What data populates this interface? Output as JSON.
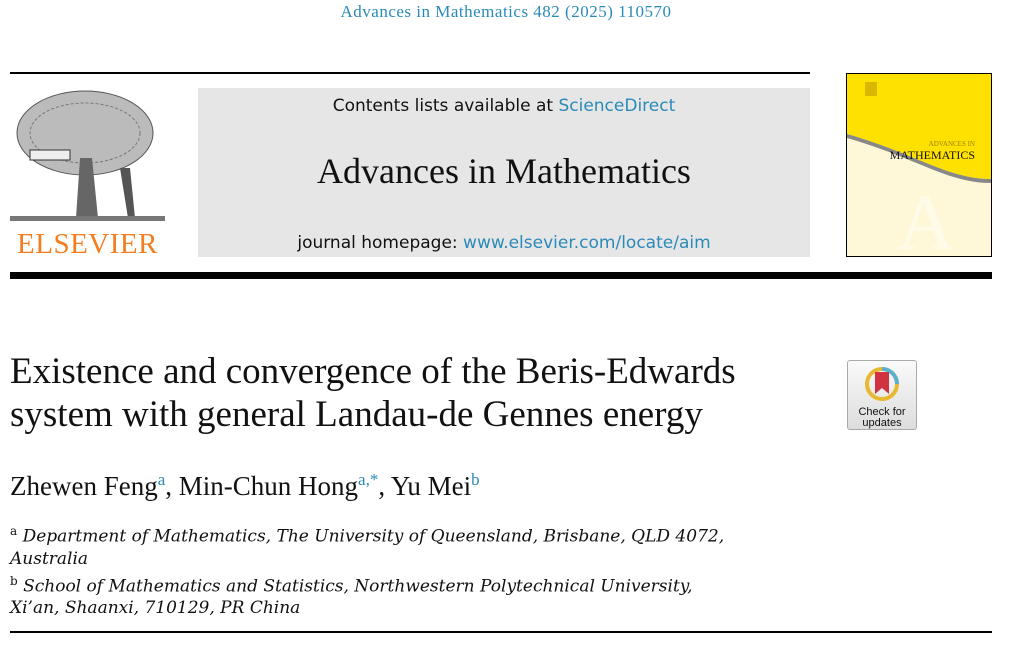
{
  "header": {
    "citation": "Advances in Mathematics 482 (2025) 110570",
    "contents_prefix": "Contents lists available at ",
    "contents_link": "ScienceDirect",
    "journal_title": "Advances in Mathematics",
    "homepage_prefix": "journal homepage: ",
    "homepage_link": "www.elsevier.com/locate/aim",
    "publisher": "ELSEVIER",
    "cover_line1": "ADVANCES IN",
    "cover_line2": "MATHEMATICS"
  },
  "badge": {
    "line1": "Check for",
    "line2": "updates"
  },
  "article": {
    "title_line1": "Existence and convergence of the Beris-Edwards",
    "title_line2": "system with general Landau-de Gennes energy",
    "authors": [
      {
        "name": "Zhewen Feng",
        "aff": "a"
      },
      {
        "name": "Min-Chun Hong",
        "aff": "a,*"
      },
      {
        "name": "Yu Mei",
        "aff": "b"
      }
    ],
    "affiliations": [
      {
        "label": "a",
        "line1": "Department of Mathematics, The University of Queensland, Brisbane, QLD 4072,",
        "line2": "Australia"
      },
      {
        "label": "b",
        "line1": "School of Mathematics and Statistics, Northwestern Polytechnical University,",
        "line2": "Xi’an, Shaanxi, 710129, PR China"
      }
    ]
  },
  "colors": {
    "link": "#2a8ab8",
    "elsevier": "#f47d20",
    "cover": "#ffe100"
  }
}
